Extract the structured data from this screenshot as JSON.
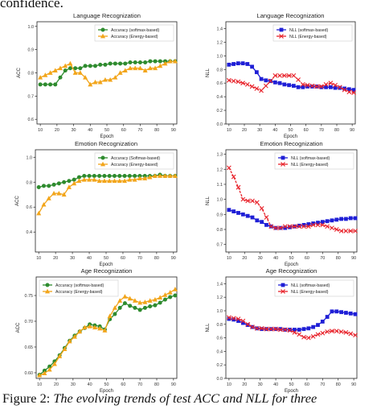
{
  "top_fragment": "confidence.",
  "caption": {
    "label": "Figure 2:",
    "text": "The evolving trends of test ACC and NLL for three"
  },
  "colors": {
    "series_a": "#2e8b2e",
    "series_b": "#f2a51a",
    "series_c": "#1f1fd6",
    "series_d": "#e8242c"
  },
  "chart_data": [
    {
      "type": "line",
      "title": "Language Recognization",
      "xlabel": "Epoch",
      "ylabel": "ACC",
      "xlim": [
        8,
        92
      ],
      "ylim": [
        0.58,
        1.02
      ],
      "xticks": [
        "10",
        "20",
        "30",
        "40",
        "50",
        "60",
        "70",
        "80",
        "90"
      ],
      "yticks": [
        "0.6",
        "0.7",
        "0.8",
        "0.9",
        "1.0"
      ],
      "legend": "top-right",
      "x": [
        10,
        13,
        16,
        19,
        22,
        25,
        28,
        31,
        34,
        37,
        40,
        43,
        46,
        49,
        52,
        55,
        58,
        61,
        64,
        67,
        70,
        73,
        76,
        79,
        82,
        85,
        88,
        91
      ],
      "series": [
        {
          "name": "Accuracy (softmax-based)",
          "color": "#2e8b2e",
          "marker": "circle",
          "values": [
            0.75,
            0.75,
            0.75,
            0.75,
            0.78,
            0.81,
            0.82,
            0.82,
            0.82,
            0.83,
            0.83,
            0.83,
            0.835,
            0.835,
            0.84,
            0.84,
            0.84,
            0.84,
            0.845,
            0.845,
            0.845,
            0.845,
            0.85,
            0.85,
            0.85,
            0.85,
            0.85,
            0.85
          ]
        },
        {
          "name": "Accuracy (Energy-based)",
          "color": "#f2a51a",
          "marker": "triangle",
          "values": [
            0.78,
            0.79,
            0.8,
            0.81,
            0.82,
            0.83,
            0.84,
            0.8,
            0.8,
            0.78,
            0.75,
            0.76,
            0.76,
            0.77,
            0.77,
            0.78,
            0.8,
            0.81,
            0.82,
            0.82,
            0.82,
            0.81,
            0.82,
            0.82,
            0.83,
            0.84,
            0.85,
            0.85
          ]
        }
      ]
    },
    {
      "type": "line",
      "title": "Language Recognization",
      "xlabel": "Epoch",
      "ylabel": "NLL",
      "xlim": [
        8,
        92
      ],
      "ylim": [
        0.0,
        1.5
      ],
      "xticks": [
        "10",
        "20",
        "30",
        "40",
        "50",
        "60",
        "70",
        "80",
        "90"
      ],
      "yticks": [
        "0.0",
        "0.2",
        "0.4",
        "0.6",
        "0.8",
        "1.0",
        "1.2",
        "1.4"
      ],
      "legend": "top-right",
      "x": [
        10,
        13,
        16,
        19,
        22,
        25,
        28,
        31,
        34,
        37,
        40,
        43,
        46,
        49,
        52,
        55,
        58,
        61,
        64,
        67,
        70,
        73,
        76,
        79,
        82,
        85,
        88,
        91
      ],
      "series": [
        {
          "name": "NLL (softmax-based)",
          "color": "#1f1fd6",
          "marker": "square",
          "values": [
            0.87,
            0.88,
            0.89,
            0.89,
            0.88,
            0.84,
            0.76,
            0.66,
            0.64,
            0.63,
            0.61,
            0.6,
            0.58,
            0.57,
            0.56,
            0.54,
            0.54,
            0.55,
            0.55,
            0.55,
            0.54,
            0.54,
            0.54,
            0.53,
            0.53,
            0.52,
            0.51,
            0.5
          ]
        },
        {
          "name": "NLL (Energy-based)",
          "color": "#e8242c",
          "marker": "x",
          "values": [
            0.64,
            0.63,
            0.62,
            0.6,
            0.58,
            0.55,
            0.52,
            0.49,
            0.56,
            0.63,
            0.71,
            0.71,
            0.71,
            0.71,
            0.71,
            0.65,
            0.58,
            0.57,
            0.56,
            0.55,
            0.55,
            0.58,
            0.6,
            0.57,
            0.54,
            0.5,
            0.47,
            0.46
          ]
        }
      ]
    },
    {
      "type": "line",
      "title": "Emotion Recognization",
      "xlabel": "Epoch",
      "ylabel": "ACC",
      "xlim": [
        8,
        92
      ],
      "ylim": [
        0.24,
        1.06
      ],
      "xticks": [
        "10",
        "20",
        "30",
        "40",
        "50",
        "60",
        "70",
        "80",
        "90"
      ],
      "yticks": [
        "0.4",
        "0.6",
        "0.8",
        "1.0"
      ],
      "legend": "top-right",
      "x": [
        10,
        13,
        16,
        19,
        22,
        25,
        28,
        31,
        34,
        37,
        40,
        43,
        46,
        49,
        52,
        55,
        58,
        61,
        64,
        67,
        70,
        73,
        76,
        79,
        82,
        85,
        88,
        91
      ],
      "series": [
        {
          "name": "Accuracy (Softmax-based)",
          "color": "#2e8b2e",
          "marker": "circle",
          "values": [
            0.76,
            0.77,
            0.77,
            0.78,
            0.79,
            0.8,
            0.81,
            0.82,
            0.84,
            0.85,
            0.85,
            0.85,
            0.85,
            0.85,
            0.85,
            0.85,
            0.85,
            0.85,
            0.85,
            0.85,
            0.85,
            0.85,
            0.85,
            0.85,
            0.86,
            0.85,
            0.85,
            0.85
          ]
        },
        {
          "name": "Accuracy (Energy-based)",
          "color": "#f2a51a",
          "marker": "triangle",
          "values": [
            0.55,
            0.62,
            0.67,
            0.71,
            0.71,
            0.7,
            0.76,
            0.79,
            0.81,
            0.82,
            0.82,
            0.82,
            0.81,
            0.81,
            0.81,
            0.81,
            0.81,
            0.81,
            0.82,
            0.82,
            0.83,
            0.83,
            0.84,
            0.85,
            0.85,
            0.85,
            0.85,
            0.85
          ]
        }
      ]
    },
    {
      "type": "line",
      "title": "Emotion Recognization",
      "xlabel": "Epoch",
      "ylabel": "NLL",
      "xlim": [
        8,
        92
      ],
      "ylim": [
        0.65,
        1.33
      ],
      "xticks": [
        "10",
        "20",
        "30",
        "40",
        "50",
        "60",
        "70",
        "80",
        "90"
      ],
      "yticks": [
        "0.7",
        "0.8",
        "0.9",
        "1.0",
        "1.1",
        "1.2",
        "1.3"
      ],
      "legend": "top-right",
      "x": [
        10,
        13,
        16,
        19,
        22,
        25,
        28,
        31,
        34,
        37,
        40,
        43,
        46,
        49,
        52,
        55,
        58,
        61,
        64,
        67,
        70,
        73,
        76,
        79,
        82,
        85,
        88,
        91
      ],
      "series": [
        {
          "name": "NLL (softmax-based)",
          "color": "#1f1fd6",
          "marker": "square",
          "values": [
            0.93,
            0.92,
            0.91,
            0.9,
            0.89,
            0.88,
            0.86,
            0.85,
            0.83,
            0.82,
            0.81,
            0.81,
            0.81,
            0.815,
            0.82,
            0.825,
            0.83,
            0.835,
            0.84,
            0.845,
            0.85,
            0.855,
            0.86,
            0.865,
            0.87,
            0.87,
            0.875,
            0.875
          ]
        },
        {
          "name": "NLL (Energy-based)",
          "color": "#e8242c",
          "marker": "x",
          "values": [
            1.21,
            1.15,
            1.08,
            1.0,
            0.99,
            0.99,
            0.98,
            0.94,
            0.88,
            0.82,
            0.81,
            0.81,
            0.82,
            0.82,
            0.82,
            0.82,
            0.82,
            0.82,
            0.83,
            0.83,
            0.83,
            0.82,
            0.81,
            0.8,
            0.79,
            0.79,
            0.79,
            0.79
          ]
        }
      ]
    },
    {
      "type": "line",
      "title": "Age Recognization",
      "xlabel": "Epoch",
      "ylabel": "ACC",
      "xlim": [
        8,
        92
      ],
      "ylim": [
        0.589,
        0.786
      ],
      "xticks": [
        "10",
        "20",
        "30",
        "40",
        "50",
        "60",
        "70",
        "80",
        "90"
      ],
      "yticks": [
        "0.60",
        "0.65",
        "0.70",
        "0.75"
      ],
      "legend": "top-left",
      "x": [
        10,
        13,
        16,
        19,
        22,
        25,
        28,
        31,
        34,
        37,
        40,
        43,
        46,
        49,
        52,
        55,
        58,
        61,
        64,
        67,
        70,
        73,
        76,
        79,
        82,
        85,
        88,
        91
      ],
      "series": [
        {
          "name": "Accuracy (softmax-based)",
          "color": "#2e8b2e",
          "marker": "circle",
          "values": [
            0.596,
            0.604,
            0.612,
            0.622,
            0.634,
            0.648,
            0.662,
            0.672,
            0.68,
            0.687,
            0.694,
            0.692,
            0.69,
            0.684,
            0.704,
            0.714,
            0.726,
            0.735,
            0.73,
            0.726,
            0.722,
            0.726,
            0.729,
            0.731,
            0.736,
            0.742,
            0.747,
            0.75
          ]
        },
        {
          "name": "Accuracy (Energy-based)",
          "color": "#f2a51a",
          "marker": "triangle",
          "values": [
            0.595,
            0.599,
            0.606,
            0.617,
            0.632,
            0.646,
            0.661,
            0.67,
            0.68,
            0.688,
            0.69,
            0.688,
            0.686,
            0.682,
            0.71,
            0.726,
            0.74,
            0.748,
            0.744,
            0.74,
            0.736,
            0.737,
            0.74,
            0.742,
            0.746,
            0.751,
            0.756,
            0.762
          ]
        }
      ]
    },
    {
      "type": "line",
      "title": "Age Recognization",
      "xlabel": "Epoch",
      "ylabel": "NLL",
      "xlim": [
        8,
        92
      ],
      "ylim": [
        0.0,
        1.5
      ],
      "xticks": [
        "10",
        "20",
        "30",
        "40",
        "50",
        "60",
        "70",
        "80",
        "90"
      ],
      "yticks": [
        "0.0",
        "0.2",
        "0.4",
        "0.6",
        "0.8",
        "1.0",
        "1.2",
        "1.4"
      ],
      "legend": "top-right",
      "x": [
        10,
        13,
        16,
        19,
        22,
        25,
        28,
        31,
        34,
        37,
        40,
        43,
        46,
        49,
        52,
        55,
        58,
        61,
        64,
        67,
        70,
        73,
        76,
        79,
        82,
        85,
        88,
        91
      ],
      "series": [
        {
          "name": "NLL (softmax-based)",
          "color": "#1f1fd6",
          "marker": "square",
          "values": [
            0.88,
            0.87,
            0.85,
            0.82,
            0.79,
            0.76,
            0.74,
            0.73,
            0.73,
            0.73,
            0.73,
            0.73,
            0.72,
            0.72,
            0.72,
            0.72,
            0.73,
            0.74,
            0.76,
            0.79,
            0.84,
            0.91,
            0.99,
            0.99,
            0.98,
            0.97,
            0.96,
            0.95
          ]
        },
        {
          "name": "NLL (Energy-based)",
          "color": "#e8242c",
          "marker": "x",
          "values": [
            0.9,
            0.89,
            0.88,
            0.85,
            0.8,
            0.76,
            0.74,
            0.74,
            0.73,
            0.73,
            0.73,
            0.72,
            0.72,
            0.71,
            0.68,
            0.65,
            0.61,
            0.6,
            0.62,
            0.65,
            0.67,
            0.69,
            0.7,
            0.7,
            0.69,
            0.68,
            0.66,
            0.64
          ]
        }
      ]
    }
  ]
}
